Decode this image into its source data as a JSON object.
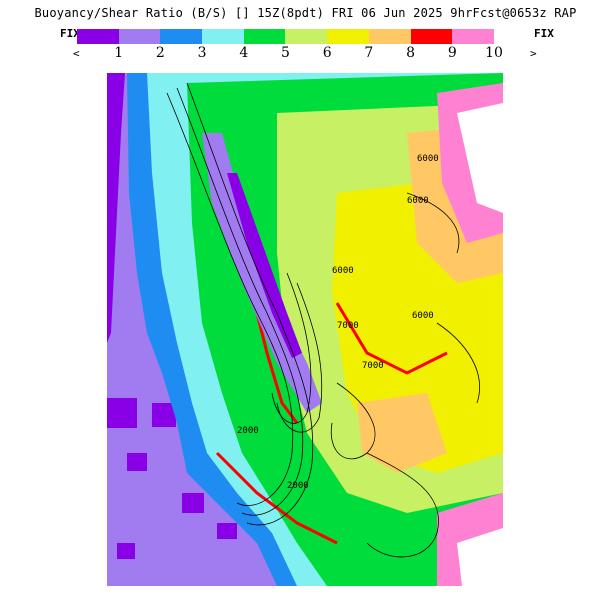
{
  "header": {
    "title": "Buoyancy/Shear Ratio (B/S) [] 15Z(8pdt) FRI 06 Jun 2025 9hrFcst@0653z RAP"
  },
  "legend": {
    "fix_left": "FIX",
    "fix_right": "FIX",
    "arrow_left": "<",
    "arrow_right": ">",
    "colors": [
      "#8a00e6",
      "#a07cf0",
      "#1e8cf0",
      "#80f0f0",
      "#00dc3c",
      "#c8f064",
      "#f0f000",
      "#ffc864",
      "#ff0000",
      "#ff82d2"
    ],
    "tick_labels": [
      "1",
      "2",
      "3",
      "4",
      "5",
      "6",
      "7",
      "8",
      "9",
      "10"
    ]
  },
  "map": {
    "ocean_color": "#a07cf0",
    "coast_deep_color": "#8a00e6",
    "contour_labels": [
      "6000",
      "6000",
      "6000",
      "6000",
      "7000",
      "7000",
      "2000",
      "2000"
    ]
  }
}
